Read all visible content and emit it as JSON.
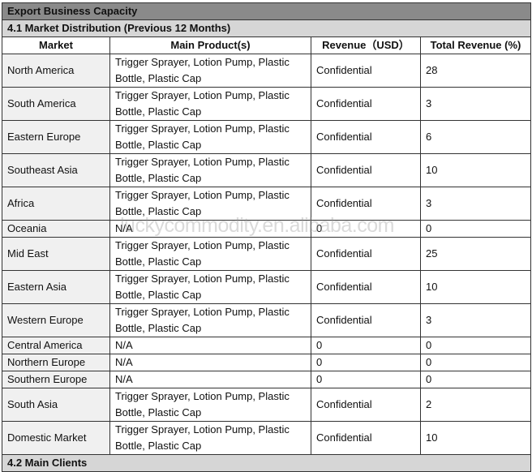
{
  "title": "Export Business Capacity",
  "section": "4.1 Market Distribution (Previous 12 Months)",
  "headers": [
    "Market",
    "Main Product(s)",
    "Revenue（USD）",
    "Total Revenue (%)"
  ],
  "rows": [
    {
      "market": "North America",
      "products": "Trigger Sprayer, Lotion Pump, Plastic Bottle, Plastic Cap",
      "revenue": "Confidential",
      "percent": "28"
    },
    {
      "market": "South America",
      "products": "Trigger Sprayer, Lotion Pump, Plastic Bottle, Plastic Cap",
      "revenue": "Confidential",
      "percent": "3"
    },
    {
      "market": "Eastern Europe",
      "products": "Trigger Sprayer, Lotion Pump, Plastic Bottle, Plastic Cap",
      "revenue": "Confidential",
      "percent": "6"
    },
    {
      "market": "Southeast Asia",
      "products": "Trigger Sprayer, Lotion Pump, Plastic Bottle, Plastic Cap",
      "revenue": "Confidential",
      "percent": "10"
    },
    {
      "market": "Africa",
      "products": "Trigger Sprayer, Lotion Pump, Plastic Bottle, Plastic Cap",
      "revenue": "Confidential",
      "percent": "3"
    },
    {
      "market": "Oceania",
      "products": "N/A",
      "revenue": "0",
      "percent": "0"
    },
    {
      "market": "Mid East",
      "products": "Trigger Sprayer, Lotion Pump, Plastic Bottle, Plastic Cap",
      "revenue": "Confidential",
      "percent": "25"
    },
    {
      "market": "Eastern Asia",
      "products": "Trigger Sprayer, Lotion Pump, Plastic Bottle, Plastic Cap",
      "revenue": "Confidential",
      "percent": "10"
    },
    {
      "market": "Western Europe",
      "products": "Trigger Sprayer, Lotion Pump, Plastic Bottle, Plastic Cap",
      "revenue": "Confidential",
      "percent": "3"
    },
    {
      "market": "Central America",
      "products": "N/A",
      "revenue": "0",
      "percent": "0"
    },
    {
      "market": "Northern Europe",
      "products": "N/A",
      "revenue": "0",
      "percent": "0"
    },
    {
      "market": "Southern Europe",
      "products": "N/A",
      "revenue": "0",
      "percent": "0"
    },
    {
      "market": "South Asia",
      "products": "Trigger Sprayer, Lotion Pump, Plastic Bottle, Plastic Cap",
      "revenue": "Confidential",
      "percent": "2"
    },
    {
      "market": "Domestic Market",
      "products": "Trigger Sprayer, Lotion Pump, Plastic Bottle, Plastic Cap",
      "revenue": "Confidential",
      "percent": "10"
    }
  ],
  "next_section": "4.2 Main Clients",
  "watermark": "luckycommodity.en.alibaba.com"
}
